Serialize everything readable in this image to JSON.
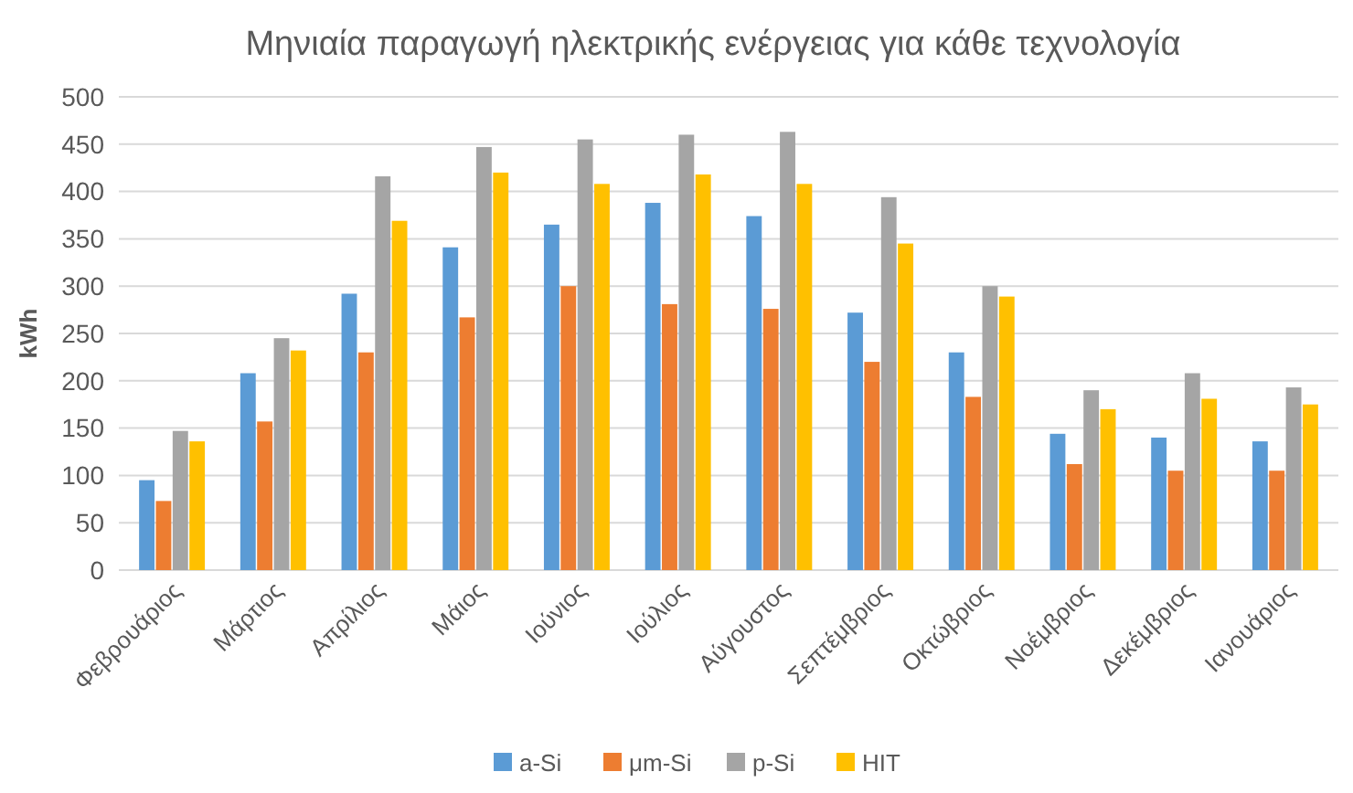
{
  "chart_data": {
    "type": "bar",
    "title": "Μηνιαία παραγωγή ηλεκτρικής ενέργειας για κάθε τεχνολογία",
    "ylabel": "kWh",
    "categories": [
      "Φεβρουάριος",
      "Μάρτιος",
      "Απρίλιος",
      "Μάιος",
      "Ιούνιος",
      "Ιούλιος",
      "Αύγουστος",
      "Σεπτέμβριος",
      "Οκτώβριος",
      "Νοέμβριος",
      "Δεκέμβριος",
      "Ιανουάριος"
    ],
    "series": [
      {
        "name": "a-Si",
        "color": "#5b9bd5",
        "values": [
          95,
          208,
          292,
          341,
          365,
          388,
          374,
          272,
          230,
          144,
          140,
          136
        ]
      },
      {
        "name": "μm-Si",
        "color": "#ed7d31",
        "values": [
          73,
          157,
          230,
          267,
          300,
          281,
          276,
          220,
          183,
          112,
          105,
          105
        ]
      },
      {
        "name": "p-Si",
        "color": "#a5a5a5",
        "values": [
          147,
          245,
          416,
          447,
          455,
          460,
          463,
          394,
          300,
          190,
          208,
          193
        ]
      },
      {
        "name": "HIT",
        "color": "#ffc000",
        "values": [
          136,
          232,
          369,
          420,
          408,
          418,
          408,
          345,
          289,
          170,
          181,
          175
        ]
      }
    ],
    "ylim": [
      0,
      500
    ],
    "yticks": [
      0,
      50,
      100,
      150,
      200,
      250,
      300,
      350,
      400,
      450,
      500
    ],
    "grid": "y",
    "legend": "bottom"
  }
}
